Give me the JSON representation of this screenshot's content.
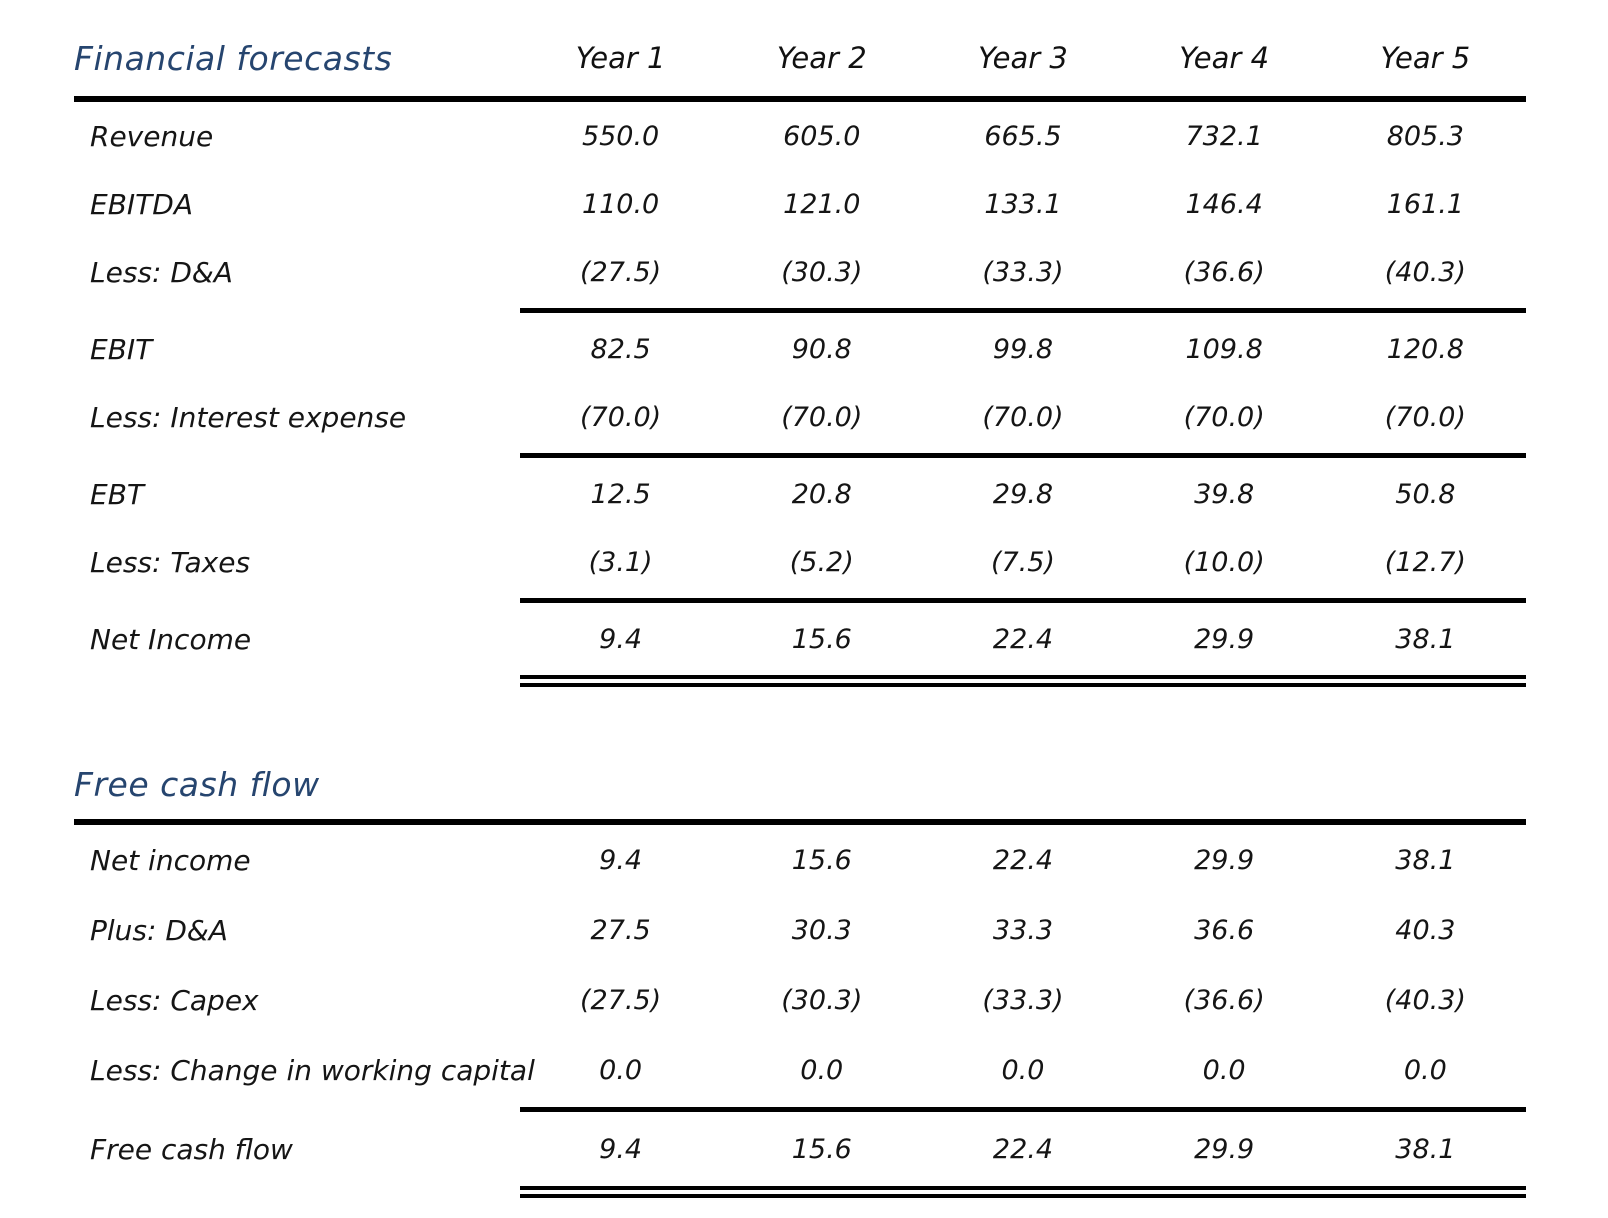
{
  "page": {
    "background_color": "#ffffff",
    "accent_color": "#26456F",
    "text_color": "#151515"
  },
  "columns": [
    "Year 1",
    "Year 2",
    "Year 3",
    "Year 4",
    "Year 5"
  ],
  "tables": [
    {
      "title": "Financial forecasts",
      "rows": [
        {
          "label": "Revenue",
          "values": [
            "550.0",
            "605.0",
            "665.5",
            "732.1",
            "805.3"
          ]
        },
        {
          "label": "EBITDA",
          "values": [
            "110.0",
            "121.0",
            "133.1",
            "146.4",
            "161.1"
          ]
        },
        {
          "label": "Less: D&A",
          "values": [
            "(27.5)",
            "(30.3)",
            "(33.3)",
            "(36.6)",
            "(40.3)"
          ],
          "rule_after": true
        },
        {
          "label": "EBIT",
          "values": [
            "82.5",
            "90.8",
            "99.8",
            "109.8",
            "120.8"
          ]
        },
        {
          "label": "Less: Interest expense",
          "values": [
            "(70.0)",
            "(70.0)",
            "(70.0)",
            "(70.0)",
            "(70.0)"
          ],
          "rule_after": true
        },
        {
          "label": "EBT",
          "values": [
            "12.5",
            "20.8",
            "29.8",
            "39.8",
            "50.8"
          ]
        },
        {
          "label": "Less: Taxes",
          "values": [
            "(3.1)",
            "(5.2)",
            "(7.5)",
            "(10.0)",
            "(12.7)"
          ],
          "rule_after": true
        },
        {
          "label": "Net Income",
          "values": [
            "9.4",
            "15.6",
            "22.4",
            "29.9",
            "38.1"
          ],
          "double_rule_after": true
        }
      ]
    },
    {
      "title": "Free cash flow",
      "rows": [
        {
          "label": "Net income",
          "values": [
            "9.4",
            "15.6",
            "22.4",
            "29.9",
            "38.1"
          ]
        },
        {
          "label": "Plus: D&A",
          "values": [
            "27.5",
            "30.3",
            "33.3",
            "36.6",
            "40.3"
          ]
        },
        {
          "label": "Less: Capex",
          "values": [
            "(27.5)",
            "(30.3)",
            "(33.3)",
            "(36.6)",
            "(40.3)"
          ]
        },
        {
          "label": "Less: Change in working capital",
          "values": [
            "0.0",
            "0.0",
            "0.0",
            "0.0",
            "0.0"
          ],
          "rule_after": true
        },
        {
          "label": "Free cash flow",
          "values": [
            "9.4",
            "15.6",
            "22.4",
            "29.9",
            "38.1"
          ],
          "double_rule_after": true
        }
      ]
    }
  ]
}
